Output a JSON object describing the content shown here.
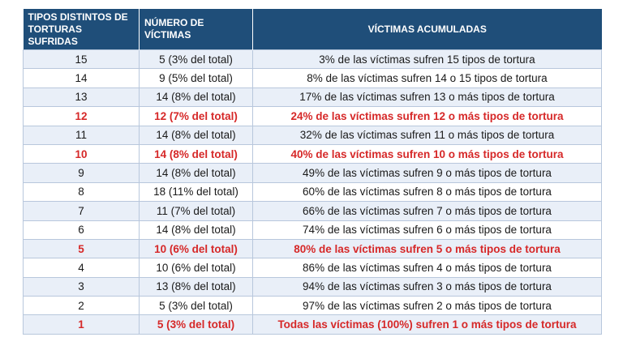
{
  "header": {
    "col1": "TIPOS DISTINTOS DE TORTURAS SUFRIDAS",
    "col2": "NÚMERO DE VÍCTIMAS",
    "col3": "VÍCTIMAS ACUMULADAS"
  },
  "rows": [
    {
      "tipos": "15",
      "victimas": "5 (3% del total)",
      "acumuladas": "3% de las víctimas sufren 15 tipos de tortura",
      "highlight": false
    },
    {
      "tipos": "14",
      "victimas": "9 (5% del total)",
      "acumuladas": "8% de las víctimas sufren 14 o 15 tipos de tortura",
      "highlight": false
    },
    {
      "tipos": "13",
      "victimas": "14 (8% del total)",
      "acumuladas": "17% de las víctimas sufren 13 o más tipos de tortura",
      "highlight": false
    },
    {
      "tipos": "12",
      "victimas": "12 (7% del total)",
      "acumuladas": "24% de las víctimas sufren 12 o más tipos de tortura",
      "highlight": true
    },
    {
      "tipos": "11",
      "victimas": "14 (8% del total)",
      "acumuladas": "32% de las víctimas sufren 11 o más tipos de tortura",
      "highlight": false
    },
    {
      "tipos": "10",
      "victimas": "14 (8% del total)",
      "acumuladas": "40% de las víctimas sufren 10 o más tipos de tortura",
      "highlight": true
    },
    {
      "tipos": "9",
      "victimas": "14 (8% del total)",
      "acumuladas": "49% de las víctimas sufren 9 o más tipos de tortura",
      "highlight": false
    },
    {
      "tipos": "8",
      "victimas": "18 (11% del total)",
      "acumuladas": "60% de las víctimas sufren 8 o más tipos de tortura",
      "highlight": false
    },
    {
      "tipos": "7",
      "victimas": "11 (7% del total)",
      "acumuladas": "66% de las víctimas sufren 7 o más tipos de tortura",
      "highlight": false
    },
    {
      "tipos": "6",
      "victimas": "14 (8% del total)",
      "acumuladas": "74% de las víctimas sufren 6 o más tipos de tortura",
      "highlight": false
    },
    {
      "tipos": "5",
      "victimas": "10 (6% del total)",
      "acumuladas": "80% de las víctimas sufren 5 o más tipos de tortura",
      "highlight": true
    },
    {
      "tipos": "4",
      "victimas": "10 (6% del total)",
      "acumuladas": "86% de las víctimas sufren 4 o más tipos de tortura",
      "highlight": false
    },
    {
      "tipos": "3",
      "victimas": "13 (8% del total)",
      "acumuladas": "94% de las víctimas sufren 3 o más tipos de tortura",
      "highlight": false
    },
    {
      "tipos": "2",
      "victimas": "5 (3% del total)",
      "acumuladas": "97% de las víctimas sufren 2 o más tipos de tortura",
      "highlight": false
    },
    {
      "tipos": "1",
      "victimas": "5 (3% del total)",
      "acumuladas": "Todas las víctimas (100%) sufren 1 o más tipos de tortura",
      "highlight": true
    }
  ],
  "colors": {
    "header_bg": "#1f4e79",
    "highlight_text": "#d62828",
    "row_alt_bg": "#e9eff8"
  }
}
